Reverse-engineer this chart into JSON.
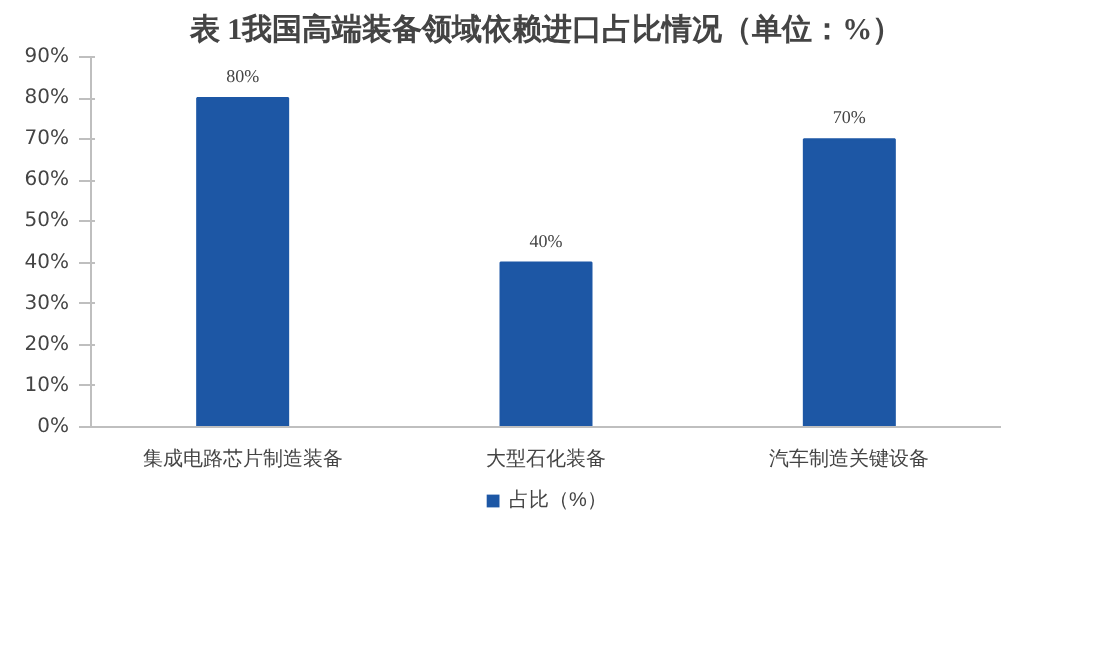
{
  "chart_data": {
    "type": "bar",
    "title": "表 1我国高端装备领域依赖进口占比情况（单位：%）",
    "categories": [
      "集成电路芯片制造装备",
      "大型石化装备",
      "汽车制造关键设备"
    ],
    "series": [
      {
        "name": "占比（%）",
        "color": "#1d57a5",
        "values": [
          80,
          40,
          70
        ],
        "value_labels": [
          "80%",
          "40%",
          "70%"
        ]
      }
    ],
    "ylim": [
      0,
      90
    ],
    "yticks": [
      {
        "value": 0,
        "label": "0%"
      },
      {
        "value": 10,
        "label": "10%"
      },
      {
        "value": 20,
        "label": "20%"
      },
      {
        "value": 30,
        "label": "30%"
      },
      {
        "value": 40,
        "label": "40%"
      },
      {
        "value": 50,
        "label": "50%"
      },
      {
        "value": 60,
        "label": "60%"
      },
      {
        "value": 70,
        "label": "70%"
      },
      {
        "value": 80,
        "label": "80%"
      },
      {
        "value": 90,
        "label": "90%"
      }
    ],
    "grid": false,
    "legend": "bottom"
  }
}
